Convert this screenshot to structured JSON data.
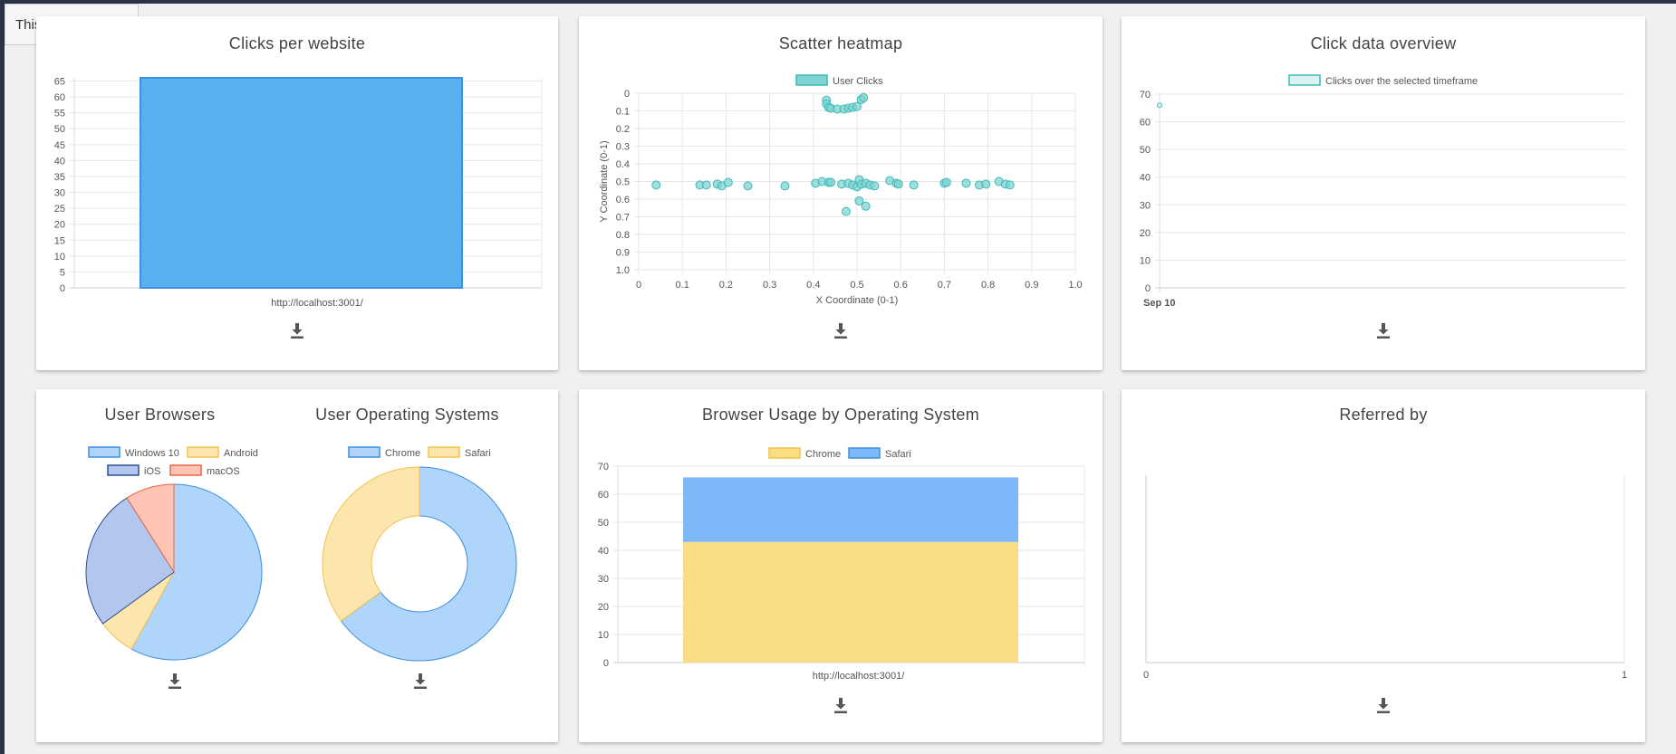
{
  "filter": {
    "selected": "This Month"
  },
  "colors": {
    "blue": "#5aafef",
    "blueStroke": "#3b91e0",
    "lightBlue": "#b0d5fb",
    "lightBlueStroke": "#3c8fe0",
    "yellow": "#fde6ad",
    "yellowStroke": "#f1c34c",
    "periwinkle": "#b3c7ee",
    "periwinkleStroke": "#2f4f93",
    "salmon": "#ffc4b3",
    "salmonStroke": "#e8664a",
    "teal": "#7fd3d1",
    "tealStroke": "#3fbab6",
    "stackYellow": "#fbdc86",
    "stackBlue": "#7db9f8"
  },
  "icons": {
    "download": "download-icon",
    "dropdown": "chevron-down-icon"
  },
  "charts": {
    "clicks_per_website": {
      "title": "Clicks per website",
      "chart_data": {
        "type": "bar",
        "categories": [
          "http://localhost:3001/"
        ],
        "values": [
          66
        ],
        "ylim": [
          0,
          66
        ],
        "yticks": [
          0,
          5,
          10,
          15,
          20,
          25,
          30,
          35,
          40,
          45,
          50,
          55,
          60,
          65
        ]
      }
    },
    "scatter_heatmap": {
      "title": "Scatter heatmap",
      "legend": [
        "User Clicks"
      ],
      "chart_data": {
        "type": "scatter",
        "xlabel": "X Coordinate (0-1)",
        "ylabel": "Y Coordinate (0-1)",
        "xlim": [
          0,
          1
        ],
        "ylim": [
          0,
          1
        ],
        "xticks": [
          "0",
          "0.1",
          "0.2",
          "0.3",
          "0.4",
          "0.5",
          "0.6",
          "0.7",
          "0.8",
          "0.9",
          "1.0"
        ],
        "yticks": [
          "0",
          "0.1",
          "0.2",
          "0.3",
          "0.4",
          "0.5",
          "0.6",
          "0.7",
          "0.8",
          "0.9",
          "1.0"
        ],
        "y_reversed": true,
        "points": [
          [
            0.04,
            0.52
          ],
          [
            0.14,
            0.52
          ],
          [
            0.155,
            0.52
          ],
          [
            0.18,
            0.515
          ],
          [
            0.19,
            0.525
          ],
          [
            0.205,
            0.505
          ],
          [
            0.25,
            0.525
          ],
          [
            0.335,
            0.525
          ],
          [
            0.405,
            0.51
          ],
          [
            0.42,
            0.5
          ],
          [
            0.435,
            0.505
          ],
          [
            0.44,
            0.505
          ],
          [
            0.465,
            0.515
          ],
          [
            0.48,
            0.51
          ],
          [
            0.49,
            0.52
          ],
          [
            0.5,
            0.53
          ],
          [
            0.505,
            0.49
          ],
          [
            0.51,
            0.515
          ],
          [
            0.52,
            0.51
          ],
          [
            0.53,
            0.52
          ],
          [
            0.54,
            0.525
          ],
          [
            0.575,
            0.495
          ],
          [
            0.59,
            0.51
          ],
          [
            0.595,
            0.515
          ],
          [
            0.63,
            0.52
          ],
          [
            0.7,
            0.51
          ],
          [
            0.705,
            0.505
          ],
          [
            0.75,
            0.51
          ],
          [
            0.78,
            0.52
          ],
          [
            0.795,
            0.515
          ],
          [
            0.825,
            0.5
          ],
          [
            0.84,
            0.515
          ],
          [
            0.85,
            0.52
          ],
          [
            0.43,
            0.04
          ],
          [
            0.43,
            0.06
          ],
          [
            0.435,
            0.08
          ],
          [
            0.44,
            0.085
          ],
          [
            0.455,
            0.09
          ],
          [
            0.47,
            0.09
          ],
          [
            0.48,
            0.085
          ],
          [
            0.49,
            0.08
          ],
          [
            0.5,
            0.075
          ],
          [
            0.51,
            0.035
          ],
          [
            0.515,
            0.025
          ],
          [
            0.475,
            0.67
          ],
          [
            0.505,
            0.61
          ],
          [
            0.52,
            0.64
          ]
        ]
      }
    },
    "click_overview": {
      "title": "Click data overview",
      "legend": [
        "Clicks over the selected timeframe"
      ],
      "chart_data": {
        "type": "line",
        "x": [
          "Sep 10"
        ],
        "values": [
          66
        ],
        "ylim": [
          0,
          70
        ],
        "yticks": [
          0,
          10,
          20,
          30,
          40,
          50,
          60,
          70
        ]
      }
    },
    "user_browsers": {
      "title": "User Browsers",
      "legend": [
        "Windows 10",
        "Android",
        "iOS",
        "macOS"
      ],
      "chart_data": {
        "type": "pie",
        "labels": [
          "Windows 10",
          "Android",
          "iOS",
          "macOS"
        ],
        "values": [
          58,
          7,
          26,
          9
        ]
      }
    },
    "user_os": {
      "title": "User Operating Systems",
      "legend": [
        "Chrome",
        "Safari"
      ],
      "chart_data": {
        "type": "doughnut",
        "labels": [
          "Chrome",
          "Safari"
        ],
        "values": [
          65,
          35
        ]
      }
    },
    "browser_usage": {
      "title": "Browser Usage by Operating System",
      "legend": [
        "Chrome",
        "Safari"
      ],
      "chart_data": {
        "type": "bar",
        "stacked": true,
        "categories": [
          "http://localhost:3001/"
        ],
        "series": [
          {
            "name": "Chrome",
            "values": [
              43
            ]
          },
          {
            "name": "Safari",
            "values": [
              23
            ]
          }
        ],
        "ylim": [
          0,
          70
        ],
        "yticks": [
          0,
          10,
          20,
          30,
          40,
          50,
          60,
          70
        ]
      }
    },
    "referred_by": {
      "title": "Referred by",
      "chart_data": {
        "type": "bar",
        "categories": [],
        "values": [],
        "xticks": [
          "0",
          "1"
        ]
      }
    }
  }
}
